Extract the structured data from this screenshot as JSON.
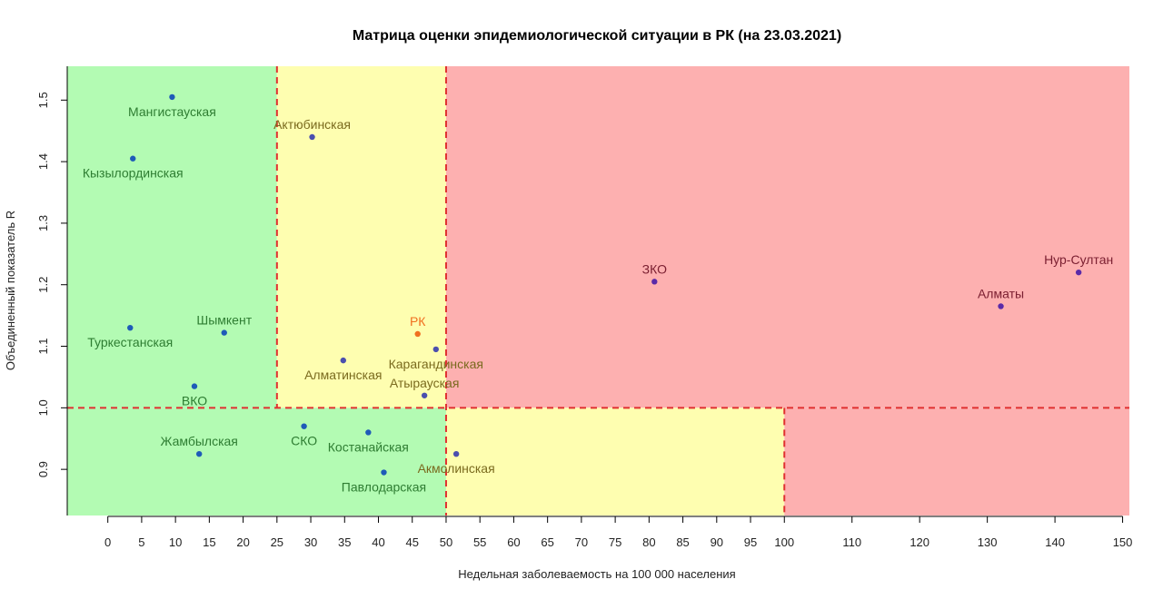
{
  "chart_data": {
    "type": "scatter",
    "title": "Матрица оценки эпидемиологической ситуации в РК (на 23.03.2021)",
    "xlabel": "Недельная заболеваемость на 100 000 населения",
    "ylabel": "Объединенный показатель R",
    "xlim": [
      -6,
      151
    ],
    "ylim": [
      0.825,
      1.555
    ],
    "x_ticks": [
      0,
      5,
      10,
      15,
      20,
      25,
      30,
      35,
      40,
      45,
      50,
      55,
      60,
      65,
      70,
      75,
      80,
      85,
      90,
      95,
      100,
      110,
      120,
      130,
      140,
      150
    ],
    "y_ticks": [
      0.9,
      1.0,
      1.1,
      1.2,
      1.3,
      1.4,
      1.5
    ],
    "grid": false,
    "colors": {
      "green_zone": "#b3fbb3",
      "yellow_zone": "#fefeb0",
      "red_zone": "#fdb0b0",
      "threshold_line": "#e03030",
      "label_green": "#2e7d32",
      "label_yellow": "#7a6a1e",
      "label_red": "#7a1e30",
      "point_green": "#1e5bb8",
      "point_yellow": "#4b4fae",
      "point_red": "#5a2aa8",
      "point_rk": "#f07020",
      "label_rk": "#f07020"
    },
    "zones": [
      {
        "x": [
          -6,
          25
        ],
        "y": [
          1.0,
          1.555
        ],
        "level": "green"
      },
      {
        "x": [
          25,
          50
        ],
        "y": [
          1.0,
          1.555
        ],
        "level": "yellow"
      },
      {
        "x": [
          50,
          151
        ],
        "y": [
          1.0,
          1.555
        ],
        "level": "red"
      },
      {
        "x": [
          -6,
          50
        ],
        "y": [
          0.825,
          1.0
        ],
        "level": "green"
      },
      {
        "x": [
          50,
          100
        ],
        "y": [
          0.825,
          1.0
        ],
        "level": "yellow"
      },
      {
        "x": [
          100,
          151
        ],
        "y": [
          0.825,
          1.0
        ],
        "level": "red"
      }
    ],
    "thresholds": [
      {
        "axis": "x",
        "value": 25,
        "from": 1.0,
        "to": 1.555
      },
      {
        "axis": "x",
        "value": 50,
        "from": 0.825,
        "to": 1.555
      },
      {
        "axis": "x",
        "value": 100,
        "from": 0.825,
        "to": 1.0
      },
      {
        "axis": "y",
        "value": 1.0,
        "from": -6,
        "to": 151
      }
    ],
    "points": [
      {
        "name": "Мангистауская",
        "x": 9.5,
        "y": 1.505,
        "zone": "green",
        "label_pos": "below"
      },
      {
        "name": "Кызылординская",
        "x": 3.7,
        "y": 1.405,
        "zone": "green",
        "label_pos": "below"
      },
      {
        "name": "Туркестанская",
        "x": 3.3,
        "y": 1.13,
        "zone": "green",
        "label_pos": "below"
      },
      {
        "name": "Шымкент",
        "x": 17.2,
        "y": 1.122,
        "zone": "green",
        "label_pos": "above"
      },
      {
        "name": "ВКО",
        "x": 12.8,
        "y": 1.035,
        "zone": "green",
        "label_pos": "below"
      },
      {
        "name": "Жамбылская",
        "x": 13.5,
        "y": 0.925,
        "zone": "green",
        "label_pos": "above"
      },
      {
        "name": "СКО",
        "x": 29.0,
        "y": 0.97,
        "zone": "green",
        "label_pos": "below"
      },
      {
        "name": "Костанайская",
        "x": 38.5,
        "y": 0.96,
        "zone": "green",
        "label_pos": "below"
      },
      {
        "name": "Павлодарская",
        "x": 40.8,
        "y": 0.895,
        "zone": "green",
        "label_pos": "below"
      },
      {
        "name": "Акмолинская",
        "x": 51.5,
        "y": 0.925,
        "zone": "yellow",
        "label_pos": "below"
      },
      {
        "name": "Актюбинская",
        "x": 30.2,
        "y": 1.44,
        "zone": "yellow",
        "label_pos": "above"
      },
      {
        "name": "Алматинская",
        "x": 34.8,
        "y": 1.077,
        "zone": "yellow",
        "label_pos": "below"
      },
      {
        "name": "Карагандинская",
        "x": 48.5,
        "y": 1.095,
        "zone": "yellow",
        "label_pos": "below"
      },
      {
        "name": "Атырауская",
        "x": 46.8,
        "y": 1.02,
        "zone": "yellow",
        "label_pos": "above"
      },
      {
        "name": "РК",
        "x": 45.8,
        "y": 1.12,
        "zone": "rk",
        "label_pos": "above"
      },
      {
        "name": "ЗКО",
        "x": 80.8,
        "y": 1.205,
        "zone": "red",
        "label_pos": "above"
      },
      {
        "name": "Алматы",
        "x": 132.0,
        "y": 1.165,
        "zone": "red",
        "label_pos": "above"
      },
      {
        "name": "Нур-Султан",
        "x": 143.5,
        "y": 1.22,
        "zone": "red",
        "label_pos": "above"
      }
    ]
  }
}
